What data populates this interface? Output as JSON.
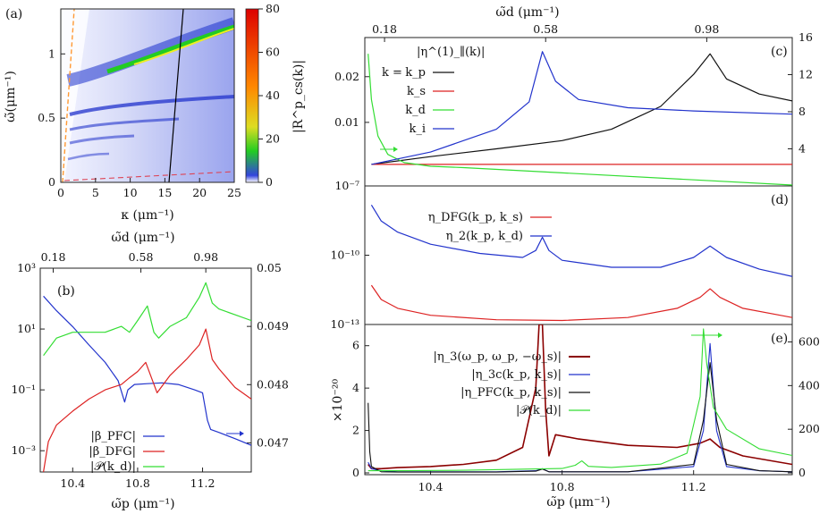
{
  "chart_data": [
    {
      "panel": "a",
      "type": "heatmap",
      "panel_label": "(a)",
      "xlabel": "κ (μm⁻¹)",
      "ylabel": "ω̃(μm⁻¹)",
      "xlim": [
        0,
        25
      ],
      "ylim": [
        0,
        1.35
      ],
      "xticks": [
        0,
        5,
        10,
        15,
        20,
        25
      ],
      "yticks": [
        0,
        0.5,
        1
      ],
      "colorbar_label": "|R^p_cs(k)|",
      "colorbar_ticks": [
        0,
        20,
        40,
        60,
        80
      ],
      "colorbar_range": [
        0,
        80
      ],
      "colors": {
        "low": "#2233cc",
        "mid": "#22cc22",
        "high": "#ee1111",
        "line_black": "#000000",
        "line_orange": "#ff9933",
        "line_red_dash": "#dd4455"
      }
    },
    {
      "panel": "b",
      "type": "line",
      "panel_label": "(b)",
      "xlabel": "ω̃p (μm⁻¹)",
      "top_xlabel": "ω̃d (μm⁻¹)",
      "xlim": [
        10.2,
        11.5
      ],
      "xticks": [
        10.4,
        10.8,
        11.2
      ],
      "top_xticks": [
        "0.18",
        "0.58",
        "0.98"
      ],
      "ylim_left_log": [
        0.0002,
        1000
      ],
      "yticks_left": [
        "10³",
        "10¹",
        "10⁻¹",
        "10⁻³"
      ],
      "ylim_right": [
        0.0465,
        0.05
      ],
      "yticks_right": [
        "0.05",
        "0.049",
        "0.048",
        "0.047"
      ],
      "legend": [
        "|β_PFC|",
        "|β_DFG|",
        "|𝒫(k_d)|"
      ],
      "series": [
        {
          "name": "|β_PFC|",
          "color": "#2233cc",
          "axis": "left-log",
          "x": [
            10.22,
            10.3,
            10.4,
            10.5,
            10.6,
            10.68,
            10.72,
            10.74,
            10.78,
            10.86,
            10.95,
            11.05,
            11.15,
            11.2,
            11.23,
            11.25,
            11.3,
            11.4,
            11.5
          ],
          "y": [
            120,
            40,
            12,
            3,
            0.8,
            0.2,
            0.04,
            0.1,
            0.15,
            0.16,
            0.17,
            0.15,
            0.1,
            0.08,
            0.01,
            0.005,
            0.004,
            0.0025,
            0.0015
          ]
        },
        {
          "name": "|β_DFG|",
          "color": "#dd2222",
          "axis": "left-log",
          "x": [
            10.22,
            10.25,
            10.3,
            10.4,
            10.5,
            10.6,
            10.7,
            10.75,
            10.8,
            10.85,
            10.88,
            10.92,
            11.0,
            11.1,
            11.18,
            11.22,
            11.26,
            11.3,
            11.4,
            11.5
          ],
          "y": [
            0.0002,
            0.002,
            0.007,
            0.02,
            0.05,
            0.1,
            0.15,
            0.25,
            0.4,
            0.8,
            0.3,
            0.08,
            0.3,
            1.0,
            3,
            10,
            1.0,
            0.5,
            0.12,
            0.05
          ]
        },
        {
          "name": "|𝒫(k_d)|",
          "color": "#33dd33",
          "axis": "right",
          "x": [
            10.22,
            10.3,
            10.4,
            10.5,
            10.6,
            10.7,
            10.75,
            10.8,
            10.86,
            10.9,
            10.93,
            11.0,
            11.1,
            11.18,
            11.22,
            11.26,
            11.3,
            11.4,
            11.5
          ],
          "y": [
            0.0485,
            0.0488,
            0.0489,
            0.0489,
            0.0489,
            0.049,
            0.0489,
            0.0491,
            0.04935,
            0.0489,
            0.0488,
            0.049,
            0.04915,
            0.0495,
            0.04975,
            0.0494,
            0.0493,
            0.0492,
            0.0491
          ]
        }
      ]
    },
    {
      "panel": "c",
      "type": "line",
      "panel_label": "(c)",
      "top_xlabel": "ω̃d (μm⁻¹)",
      "top_xticks": [
        "0.18",
        "0.58",
        "0.98"
      ],
      "yticks_left": [
        "0.02",
        "0.01",
        "10⁻⁷"
      ],
      "yticks_right": [
        "16",
        "12",
        "8",
        "4"
      ],
      "ylim_left": [
        0,
        0.027
      ],
      "ylim_right": [
        0,
        16
      ],
      "legend_title": "|η^(1)_∥(k)|",
      "legend_prefix": "k =",
      "legend": [
        "k_p",
        "k_s",
        "k_d",
        "k_i"
      ],
      "series": [
        {
          "name": "k_p",
          "color": "#111111",
          "axis": "left",
          "x": [
            10.22,
            10.4,
            10.6,
            10.8,
            10.95,
            11.1,
            11.2,
            11.25,
            11.3,
            11.4,
            11.5
          ],
          "y": [
            0.0008,
            0.0025,
            0.0042,
            0.006,
            0.0085,
            0.0135,
            0.0205,
            0.025,
            0.0195,
            0.0162,
            0.0147
          ]
        },
        {
          "name": "k_s",
          "color": "#dd2222",
          "axis": "left",
          "x": [
            10.22,
            11.5
          ],
          "y": [
            0.0008,
            0.0008
          ]
        },
        {
          "name": "k_d",
          "color": "#33dd33",
          "axis": "left",
          "x": [
            10.21,
            10.22,
            10.24,
            10.27,
            10.32,
            10.4,
            10.5,
            11.5
          ],
          "y": [
            0.025,
            0.015,
            0.007,
            0.003,
            0.0012,
            0.0004,
            0.0001,
            0.0
          ]
        },
        {
          "name": "k_i",
          "color": "#2233cc",
          "axis": "left",
          "x": [
            10.22,
            10.4,
            10.6,
            10.7,
            10.74,
            10.78,
            10.85,
            11.0,
            11.2,
            11.5
          ],
          "y": [
            0.0008,
            0.0035,
            0.0085,
            0.0145,
            0.0255,
            0.019,
            0.015,
            0.0132,
            0.0125,
            0.0118
          ]
        }
      ]
    },
    {
      "panel": "d",
      "type": "line",
      "panel_label": "(d)",
      "yticks_left": [
        "10⁻¹⁰",
        "10⁻¹³"
      ],
      "ylim_left_log": [
        1e-13,
        1e-07
      ],
      "legend": [
        "η_DFG(k_p, k_s)",
        "η_2(k_p, k_d)"
      ],
      "series": [
        {
          "name": "η_DFG(k_p, k_s)",
          "color": "#dd2222",
          "axis": "left-log",
          "x": [
            10.22,
            10.25,
            10.3,
            10.4,
            10.6,
            10.8,
            11.0,
            11.15,
            11.22,
            11.25,
            11.28,
            11.35,
            11.5
          ],
          "y": [
            5e-12,
            1.2e-12,
            5e-13,
            2.5e-13,
            1.6e-13,
            1.5e-13,
            2e-13,
            5e-13,
            1.5e-12,
            3.5e-12,
            1.5e-12,
            5e-13,
            2e-13
          ]
        },
        {
          "name": "η_2(k_p, k_d)",
          "color": "#2233cc",
          "axis": "left-log",
          "x": [
            10.22,
            10.25,
            10.3,
            10.4,
            10.55,
            10.68,
            10.72,
            10.74,
            10.76,
            10.8,
            10.95,
            11.1,
            11.2,
            11.25,
            11.3,
            11.4,
            11.5
          ],
          "y": [
            1.5e-08,
            3e-09,
            1e-09,
            3e-10,
            1.2e-10,
            8e-11,
            1.6e-10,
            6e-10,
            1.6e-10,
            6e-11,
            3e-11,
            3e-11,
            8e-11,
            2.5e-10,
            8e-11,
            2.5e-11,
            1.2e-11
          ]
        }
      ]
    },
    {
      "panel": "e",
      "type": "line",
      "panel_label": "(e)",
      "xlabel": "ω̃p (μm⁻¹)",
      "xlim": [
        10.2,
        11.5
      ],
      "xticks": [
        10.4,
        10.8,
        11.2
      ],
      "ylabel": "×10⁻²⁰",
      "ylim_left": [
        0,
        7
      ],
      "yticks_left": [
        "0",
        "2",
        "4",
        "6"
      ],
      "ylim_right": [
        0,
        680
      ],
      "yticks_right": [
        "0",
        "200",
        "400",
        "600"
      ],
      "legend": [
        "|η_3(ω_p, ω_p, −ω_s)|",
        "|η_3c(k_p, k_s)|",
        "|η_PFC(k_p, k_s)|",
        "|𝒫(k_d)|"
      ],
      "series": [
        {
          "name": "|η_3(ω_p, ω_p, −ω_s)|",
          "color": "#8b0000",
          "axis": "left",
          "x": [
            10.21,
            10.22,
            10.25,
            10.3,
            10.4,
            10.5,
            10.6,
            10.68,
            10.72,
            10.73,
            10.74,
            10.75,
            10.76,
            10.78,
            10.85,
            11.0,
            11.15,
            11.22,
            11.25,
            11.28,
            11.35,
            11.5
          ],
          "y": [
            0.4,
            0.2,
            0.2,
            0.25,
            0.3,
            0.4,
            0.6,
            1.2,
            4.0,
            7.0,
            7.0,
            3.0,
            0.8,
            1.8,
            1.6,
            1.3,
            1.2,
            1.4,
            1.6,
            1.2,
            0.8,
            0.4
          ]
        },
        {
          "name": "|η_3c(k_p, k_s)|",
          "color": "#2233cc",
          "axis": "left",
          "x": [
            10.21,
            10.22,
            10.25,
            10.3,
            10.6,
            10.72,
            10.74,
            10.76,
            11.0,
            11.2,
            11.23,
            11.25,
            11.27,
            11.3,
            11.4,
            11.5
          ],
          "y": [
            0.5,
            0.2,
            0.1,
            0.05,
            0.05,
            0.1,
            0.2,
            0.05,
            0.05,
            0.3,
            2.0,
            6.1,
            2.0,
            0.3,
            0.1,
            0.05
          ]
        },
        {
          "name": "|η_PFC(k_p, k_s)|",
          "color": "#111111",
          "axis": "left",
          "x": [
            10.21,
            10.215,
            10.22,
            10.25,
            10.3,
            10.6,
            10.72,
            10.74,
            10.76,
            11.0,
            11.2,
            11.23,
            11.25,
            11.27,
            11.3,
            11.4,
            11.5
          ],
          "y": [
            3.3,
            1.0,
            0.3,
            0.05,
            0.04,
            0.04,
            0.08,
            0.18,
            0.05,
            0.05,
            0.4,
            2.5,
            5.2,
            2.5,
            0.4,
            0.1,
            0.05
          ]
        },
        {
          "name": "|𝒫(k_d)|",
          "color": "#33dd33",
          "axis": "right",
          "x": [
            10.21,
            10.3,
            10.5,
            10.8,
            10.84,
            10.86,
            10.88,
            10.95,
            11.1,
            11.18,
            11.22,
            11.23,
            11.24,
            11.26,
            11.3,
            11.4,
            11.5
          ],
          "y": [
            10,
            10,
            12,
            20,
            35,
            55,
            30,
            25,
            40,
            90,
            350,
            660,
            500,
            300,
            200,
            110,
            80
          ]
        }
      ]
    }
  ]
}
